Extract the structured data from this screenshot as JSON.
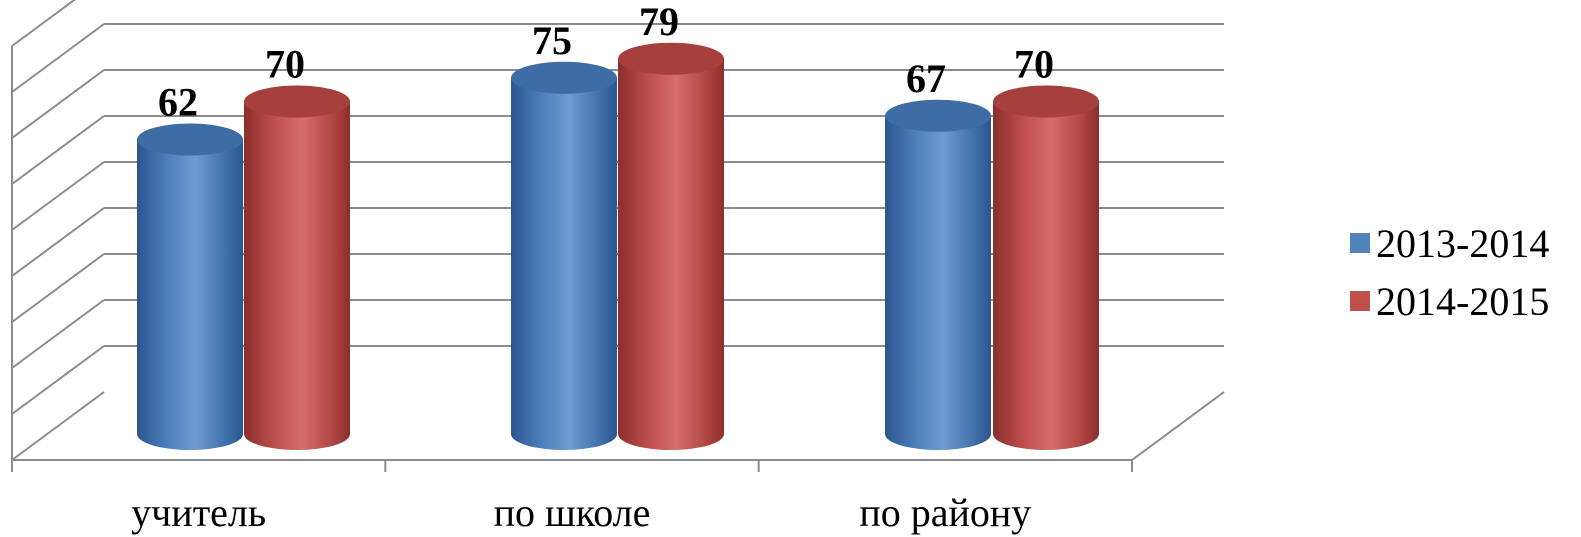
{
  "chart_data": {
    "type": "bar",
    "style": "3d-cylinder",
    "categories": [
      "учитель",
      "по школе",
      "по району"
    ],
    "series": [
      {
        "name": "2013-2014",
        "values": [
          62,
          75,
          67
        ],
        "color": "#4f81bd"
      },
      {
        "name": "2014-2015",
        "values": [
          70,
          79,
          70
        ],
        "color": "#c0504d"
      }
    ],
    "grid": true,
    "legend_position": "right"
  }
}
